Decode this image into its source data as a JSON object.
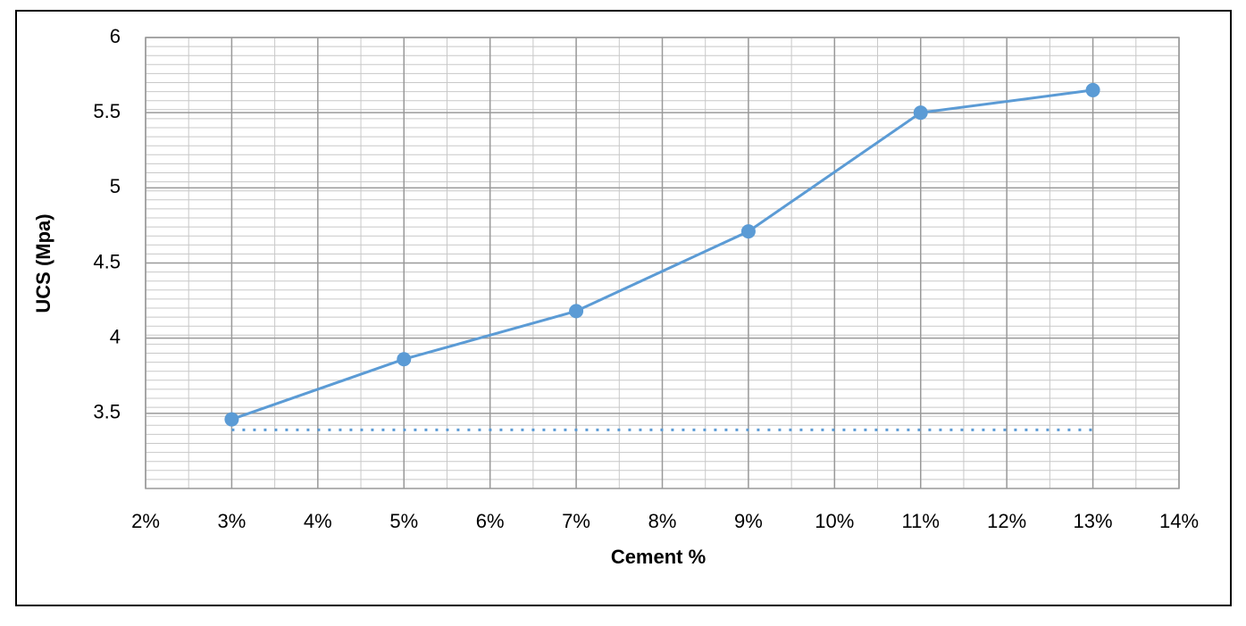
{
  "chart_data": {
    "type": "line",
    "xlabel": "Cement %",
    "ylabel": "UCS (Mpa)",
    "x": [
      3,
      5,
      7,
      9,
      11,
      13
    ],
    "series": [
      {
        "color": "#5b9bd5",
        "values": [
          3.46,
          3.86,
          4.18,
          4.71,
          5.5,
          5.65
        ],
        "marker": true,
        "dash": false
      },
      {
        "color": "#5b9bd5",
        "x": [
          3,
          13
        ],
        "values": [
          3.39,
          3.39
        ],
        "marker": false,
        "dash": true
      }
    ],
    "xlim": [
      2,
      14
    ],
    "xticks": [
      {
        "value": 2,
        "label": "2%"
      },
      {
        "value": 3,
        "label": "3%"
      },
      {
        "value": 4,
        "label": "4%"
      },
      {
        "value": 5,
        "label": "5%"
      },
      {
        "value": 6,
        "label": "6%"
      },
      {
        "value": 7,
        "label": "7%"
      },
      {
        "value": 8,
        "label": "8%"
      },
      {
        "value": 9,
        "label": "9%"
      },
      {
        "value": 10,
        "label": "10%"
      },
      {
        "value": 11,
        "label": "11%"
      },
      {
        "value": 12,
        "label": "12%"
      },
      {
        "value": 13,
        "label": "13%"
      },
      {
        "value": 14,
        "label": "14%"
      }
    ],
    "ylim": [
      3,
      6
    ],
    "yticks": [
      3.5,
      4,
      4.5,
      5,
      5.5,
      6
    ],
    "grid": true
  }
}
